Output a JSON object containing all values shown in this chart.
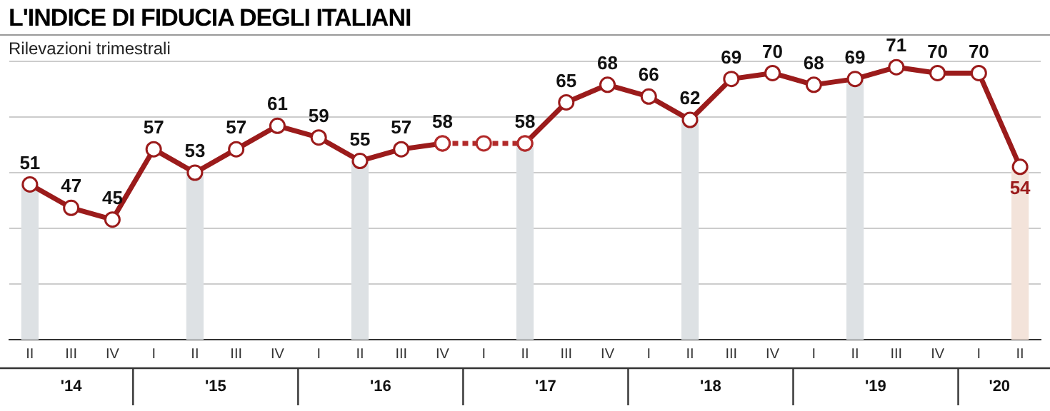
{
  "chart_data": {
    "type": "line",
    "title": "L'INDICE DI FIDUCIA DEGLI ITALIANI",
    "subtitle": "Rilevazioni trimestrali",
    "categories": [
      "II",
      "III",
      "IV",
      "I",
      "II",
      "III",
      "IV",
      "I",
      "II",
      "III",
      "IV",
      "I",
      "II",
      "III",
      "IV",
      "I",
      "II",
      "III",
      "IV",
      "I",
      "II",
      "III",
      "IV",
      "I",
      "II"
    ],
    "series": [
      {
        "type": "bar",
        "colors": [
          "#dde1e4",
          null,
          null,
          null,
          "#dde1e4",
          null,
          null,
          null,
          "#dde1e4",
          null,
          null,
          null,
          "#dde1e4",
          null,
          null,
          null,
          "#dde1e4",
          null,
          null,
          null,
          "#dde1e4",
          null,
          null,
          null,
          "#f3e3da"
        ],
        "values": [
          51,
          null,
          null,
          null,
          53,
          null,
          null,
          null,
          55,
          null,
          null,
          null,
          58,
          null,
          null,
          null,
          62,
          null,
          null,
          null,
          69,
          null,
          null,
          null,
          54
        ]
      },
      {
        "color": "#9b1b1b",
        "marker": "circle",
        "line_style": "solid",
        "values": [
          51,
          47,
          45,
          57,
          53,
          57,
          61,
          59,
          55,
          57,
          58,
          null,
          58,
          65,
          68,
          66,
          62,
          69,
          70,
          68,
          69,
          71,
          70,
          70,
          54
        ],
        "value_labels": [
          "51",
          "47",
          "45",
          "57",
          "53",
          "57",
          "61",
          "59",
          "55",
          "57",
          "58",
          null,
          "58",
          "65",
          "68",
          "66",
          "62",
          "69",
          "70",
          "68",
          "69",
          "71",
          "70",
          "70",
          "54"
        ]
      },
      {
        "color": "#b22a2a",
        "marker": "circle",
        "line_style": "dotted",
        "values": [
          null,
          null,
          null,
          null,
          null,
          null,
          null,
          null,
          null,
          null,
          58,
          58,
          58,
          null,
          null,
          null,
          null,
          null,
          null,
          null,
          null,
          null,
          null,
          null,
          null
        ]
      }
    ],
    "annotations": [
      "'14",
      "'15",
      "'16",
      "'17",
      "'18",
      "'19",
      "'20"
    ],
    "ylim": [
      24.5,
      72
    ],
    "yticks": [
      {
        "value": 34,
        "label": null
      },
      {
        "value": 43.5,
        "label": null
      },
      {
        "value": 53,
        "label": null
      },
      {
        "value": 62.5,
        "label": null
      },
      {
        "value": 72,
        "label": null
      }
    ],
    "grid": "y",
    "legend": false,
    "tick_labels": "x"
  }
}
